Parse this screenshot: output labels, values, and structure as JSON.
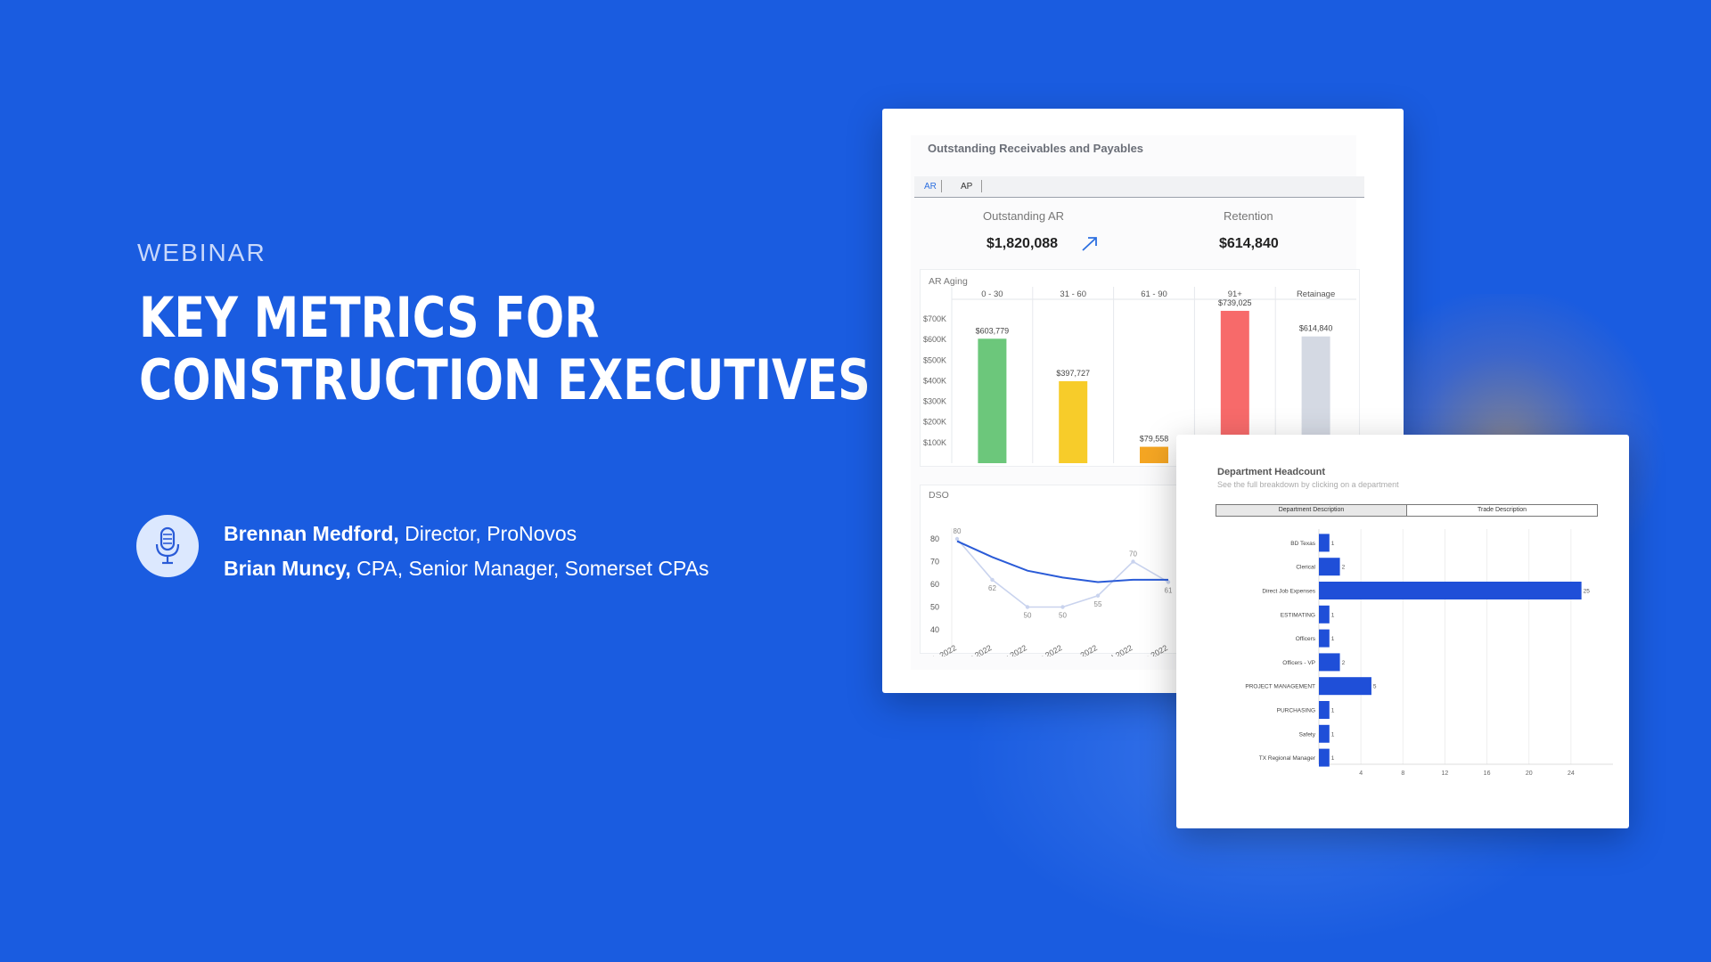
{
  "eyebrow": "WEBINAR",
  "headline": [
    "KEY METRICS FOR",
    "CONSTRUCTION EXECUTIVES"
  ],
  "speakers": [
    {
      "name": "Brennan Medford,",
      "role": " Director, ProNovos"
    },
    {
      "name": "Brian Muncy,",
      "role": " CPA, Senior Manager, Somerset CPAs"
    }
  ],
  "icons": {
    "speaker": "microphone-icon",
    "trend": "arrow-up-right-icon"
  },
  "colors": {
    "background": "#1a5ce0",
    "bar_blue": "#1f4fd8",
    "green": "#6cc77b",
    "yellow": "#f7cc2a",
    "orange": "#f5a623",
    "red": "#f76a6a",
    "gray": "#d4d9e3"
  },
  "receivables": {
    "title": "Outstanding Receivables and Payables",
    "tabs": [
      "AR",
      "AP"
    ],
    "outstanding_label": "Outstanding AR",
    "outstanding_value": "$1,820,088",
    "retention_label": "Retention",
    "retention_value": "$614,840",
    "aging_label": "AR Aging",
    "dso_label": "DSO"
  },
  "chart_data": [
    {
      "type": "bar",
      "title": "AR Aging",
      "categories": [
        "0 - 30",
        "31 - 60",
        "61 - 90",
        "91+",
        "Retainage"
      ],
      "values": [
        603779,
        397727,
        79558,
        739025,
        614840
      ],
      "value_labels": [
        "$603,779",
        "$397,727",
        "$79,558",
        "$739,025",
        "$614,840"
      ],
      "colors": [
        "#6cc77b",
        "#f7cc2a",
        "#f5a623",
        "#f76a6a",
        "#d4d9e3"
      ],
      "y_ticks": [
        "$700K",
        "$600K",
        "$500K",
        "$400K",
        "$300K",
        "$200K",
        "$100K"
      ],
      "ylim": [
        0,
        700000
      ]
    },
    {
      "type": "line",
      "title": "DSO",
      "x": [
        "Feb-2022",
        "Mar-2022",
        "Apr-2022",
        "May-2022",
        "Jun-2022",
        "Jul-2022",
        "Aug-2022"
      ],
      "y_ticks": [
        "80",
        "70",
        "60",
        "50",
        "40"
      ],
      "ylim": [
        40,
        80
      ],
      "series": [
        {
          "values": [
            80,
            62,
            50,
            50,
            55,
            70,
            61
          ],
          "labels": [
            "80",
            "62",
            "50",
            "50",
            "55",
            "70",
            "61"
          ]
        },
        {
          "values": [
            79,
            72,
            66,
            63,
            61,
            62,
            62
          ]
        }
      ]
    },
    {
      "type": "bar",
      "orientation": "horizontal",
      "title": "Department Headcount",
      "subtitle": "See the full breakdown by clicking on a department",
      "tabs": [
        "Department Description",
        "Trade Description"
      ],
      "categories": [
        "BD Texas",
        "Clerical",
        "Direct Job Expenses",
        "ESTIMATING",
        "Officers",
        "Officers - VP",
        "PROJECT MANAGEMENT",
        "PURCHASING",
        "Safety",
        "TX Regional Manager"
      ],
      "values": [
        1,
        2,
        25,
        1,
        1,
        2,
        5,
        1,
        1,
        1
      ],
      "x_ticks": [
        "4",
        "8",
        "12",
        "16",
        "20",
        "24"
      ],
      "xlim": [
        0,
        28
      ]
    }
  ]
}
